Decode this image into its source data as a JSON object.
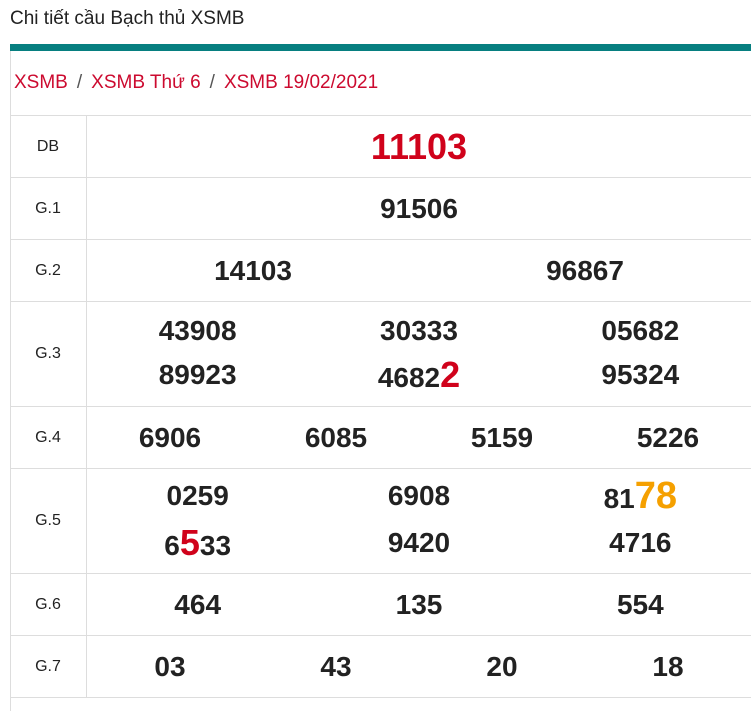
{
  "title": "Chi tiết cầu Bạch thủ XSMB",
  "breadcrumb": [
    "XSMB",
    "XSMB Thứ 6",
    "XSMB 19/02/2021"
  ],
  "colors": {
    "accent": "#077f80",
    "link": "#cc0a2f",
    "highlight_red": "#d0021b",
    "highlight_orange": "#f5a000"
  },
  "prizes": [
    {
      "label": "DB",
      "cols": 1,
      "numbers": [
        {
          "pre": "11103",
          "hl": "",
          "post": ""
        }
      ]
    },
    {
      "label": "G.1",
      "cols": 1,
      "numbers": [
        {
          "pre": "91506",
          "hl": "",
          "post": ""
        }
      ]
    },
    {
      "label": "G.2",
      "cols": 2,
      "numbers": [
        {
          "pre": "14103",
          "hl": "",
          "post": ""
        },
        {
          "pre": "96867",
          "hl": "",
          "post": ""
        }
      ]
    },
    {
      "label": "G.3",
      "cols": 3,
      "numbers": [
        {
          "pre": "43908",
          "hl": "",
          "post": ""
        },
        {
          "pre": "30333",
          "hl": "",
          "post": ""
        },
        {
          "pre": "05682",
          "hl": "",
          "post": ""
        },
        {
          "pre": "89923",
          "hl": "",
          "post": ""
        },
        {
          "pre": "4682",
          "hl": "2",
          "post": "",
          "color": "red"
        },
        {
          "pre": "95324",
          "hl": "",
          "post": ""
        }
      ]
    },
    {
      "label": "G.4",
      "cols": 4,
      "numbers": [
        {
          "pre": "6906",
          "hl": "",
          "post": ""
        },
        {
          "pre": "6085",
          "hl": "",
          "post": ""
        },
        {
          "pre": "5159",
          "hl": "",
          "post": ""
        },
        {
          "pre": "5226",
          "hl": "",
          "post": ""
        }
      ]
    },
    {
      "label": "G.5",
      "cols": 3,
      "numbers": [
        {
          "pre": "0259",
          "hl": "",
          "post": ""
        },
        {
          "pre": "6908",
          "hl": "",
          "post": ""
        },
        {
          "pre": "81",
          "hl": "78",
          "post": "",
          "color": "orange"
        },
        {
          "pre": "6",
          "hl": "5",
          "post": "33",
          "color": "red"
        },
        {
          "pre": "9420",
          "hl": "",
          "post": ""
        },
        {
          "pre": "4716",
          "hl": "",
          "post": ""
        }
      ]
    },
    {
      "label": "G.6",
      "cols": 3,
      "numbers": [
        {
          "pre": "464",
          "hl": "",
          "post": ""
        },
        {
          "pre": "135",
          "hl": "",
          "post": ""
        },
        {
          "pre": "554",
          "hl": "",
          "post": ""
        }
      ]
    },
    {
      "label": "G.7",
      "cols": 4,
      "numbers": [
        {
          "pre": "03",
          "hl": "",
          "post": ""
        },
        {
          "pre": "43",
          "hl": "",
          "post": ""
        },
        {
          "pre": "20",
          "hl": "",
          "post": ""
        },
        {
          "pre": "18",
          "hl": "",
          "post": ""
        }
      ]
    }
  ]
}
